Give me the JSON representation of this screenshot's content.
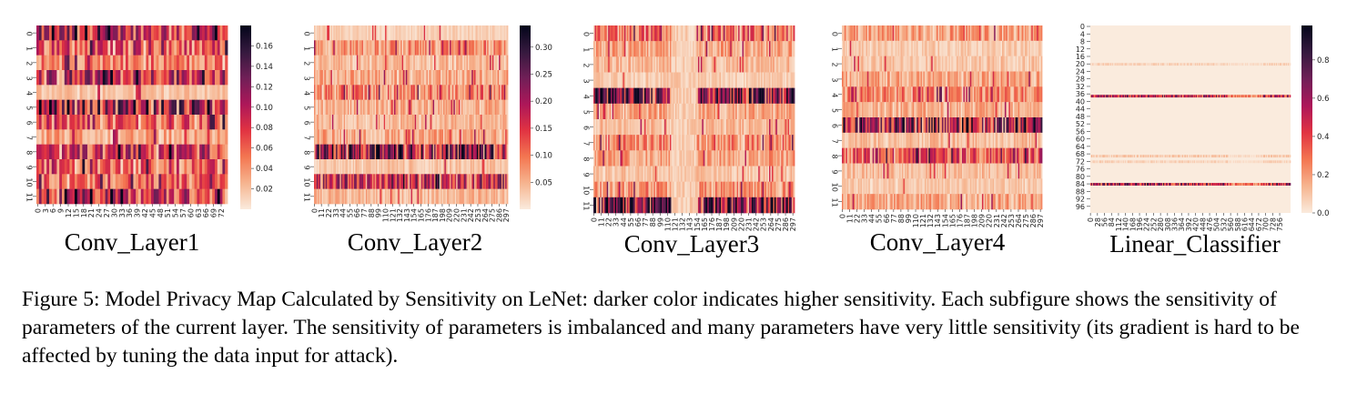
{
  "caption": "Figure 5: Model Privacy Map Calculated by Sensitivity on LeNet: darker color indicates higher sensitivity. Each subfigure shows the sensitivity of parameters of the current layer. The sensitivity of parameters is imbalanced and many parameters have very little sensitivity (its gradient is hard to be affected by tuning the data input for attack).",
  "colormap": [
    "#faebdd",
    "#f6b48f",
    "#f37651",
    "#e13342",
    "#ad1759",
    "#701f57",
    "#35193e",
    "#03051a"
  ],
  "chart_data": [
    {
      "type": "heatmap",
      "title": "Conv_Layer1",
      "rows": 12,
      "cols": 75,
      "row_ticks": [
        "0",
        "1",
        "2",
        "3",
        "4",
        "5",
        "6",
        "7",
        "8",
        "9",
        "10",
        "11"
      ],
      "col_ticks": [
        "0",
        "3",
        "6",
        "9",
        "12",
        "15",
        "18",
        "21",
        "24",
        "27",
        "30",
        "33",
        "36",
        "39",
        "42",
        "45",
        "48",
        "51",
        "54",
        "57",
        "60",
        "63",
        "66",
        "69",
        "72"
      ],
      "colorbar": {
        "min": 0.0,
        "max": 0.18,
        "ticks": [
          "0.02",
          "0.04",
          "0.06",
          "0.08",
          "0.10",
          "0.12",
          "0.14",
          "0.16"
        ]
      },
      "row_levels": [
        0.55,
        0.4,
        0.3,
        0.55,
        0.12,
        0.65,
        0.4,
        0.2,
        0.5,
        0.4,
        0.35,
        0.5
      ],
      "band_cols": [],
      "band_level": 1.0
    },
    {
      "type": "heatmap",
      "title": "Conv_Layer2",
      "rows": 12,
      "cols": 300,
      "row_ticks": [
        "0",
        "1",
        "2",
        "3",
        "4",
        "5",
        "6",
        "7",
        "8",
        "9",
        "10",
        "11"
      ],
      "col_ticks": [
        "0",
        "11",
        "22",
        "33",
        "44",
        "55",
        "66",
        "77",
        "88",
        "99",
        "110",
        "121",
        "132",
        "143",
        "154",
        "165",
        "176",
        "187",
        "198",
        "209",
        "220",
        "231",
        "242",
        "253",
        "264",
        "275",
        "286",
        "297"
      ],
      "colorbar": {
        "min": 0.0,
        "max": 0.34,
        "ticks": [
          "0.05",
          "0.10",
          "0.15",
          "0.20",
          "0.25",
          "0.30"
        ]
      },
      "row_levels": [
        0.08,
        0.25,
        0.15,
        0.2,
        0.3,
        0.18,
        0.15,
        0.2,
        0.7,
        0.12,
        0.55,
        0.15
      ],
      "band_cols": [],
      "band_level": 1.0
    },
    {
      "type": "heatmap",
      "title": "Conv_Layer3",
      "rows": 12,
      "cols": 300,
      "row_ticks": [
        "0",
        "1",
        "2",
        "3",
        "4",
        "5",
        "6",
        "7",
        "8",
        "9",
        "10",
        "11"
      ],
      "col_ticks": [
        "0",
        "11",
        "22",
        "33",
        "44",
        "55",
        "66",
        "77",
        "88",
        "99",
        "110",
        "121",
        "132",
        "143",
        "154",
        "165",
        "176",
        "187",
        "198",
        "209",
        "220",
        "231",
        "242",
        "253",
        "264",
        "275",
        "286",
        "297"
      ],
      "colorbar": null,
      "row_levels": [
        0.35,
        0.2,
        0.15,
        0.1,
        0.7,
        0.2,
        0.15,
        0.3,
        0.22,
        0.12,
        0.25,
        0.75
      ],
      "band_cols": [
        115,
        153
      ],
      "band_level": 0.12
    },
    {
      "type": "heatmap",
      "title": "Conv_Layer4",
      "rows": 12,
      "cols": 300,
      "row_ticks": [
        "0",
        "1",
        "2",
        "3",
        "4",
        "5",
        "6",
        "7",
        "8",
        "9",
        "10",
        "11"
      ],
      "col_ticks": [
        "0",
        "11",
        "22",
        "33",
        "44",
        "55",
        "66",
        "77",
        "88",
        "99",
        "110",
        "121",
        "132",
        "143",
        "154",
        "165",
        "176",
        "187",
        "198",
        "209",
        "220",
        "231",
        "242",
        "253",
        "264",
        "275",
        "286",
        "297"
      ],
      "colorbar": null,
      "row_levels": [
        0.22,
        0.1,
        0.12,
        0.2,
        0.28,
        0.18,
        0.62,
        0.14,
        0.42,
        0.14,
        0.1,
        0.2
      ],
      "band_cols": [],
      "band_level": 1.0
    },
    {
      "type": "heatmap",
      "title": "Linear_Classifier",
      "rows": 100,
      "cols": 800,
      "row_ticks": [
        "0",
        "4",
        "8",
        "12",
        "16",
        "20",
        "24",
        "28",
        "32",
        "36",
        "40",
        "44",
        "48",
        "52",
        "56",
        "60",
        "64",
        "68",
        "72",
        "76",
        "80",
        "84",
        "88",
        "92",
        "96"
      ],
      "col_ticks": [
        "0",
        "28",
        "56",
        "84",
        "112",
        "140",
        "168",
        "196",
        "224",
        "252",
        "280",
        "308",
        "336",
        "364",
        "392",
        "420",
        "448",
        "476",
        "504",
        "532",
        "560",
        "588",
        "616",
        "644",
        "672",
        "700",
        "728",
        "756"
      ],
      "colorbar": {
        "min": 0.0,
        "max": 0.98,
        "ticks": [
          "0.0",
          "0.2",
          "0.4",
          "0.6",
          "0.8"
        ]
      },
      "hot_rows": [
        {
          "row": 37,
          "level": 0.55
        },
        {
          "row": 84,
          "level": 0.6
        },
        {
          "row": 20,
          "level": 0.06
        },
        {
          "row": 69,
          "level": 0.08
        },
        {
          "row": 72,
          "level": 0.06
        }
      ],
      "background_level": 0.0
    }
  ]
}
